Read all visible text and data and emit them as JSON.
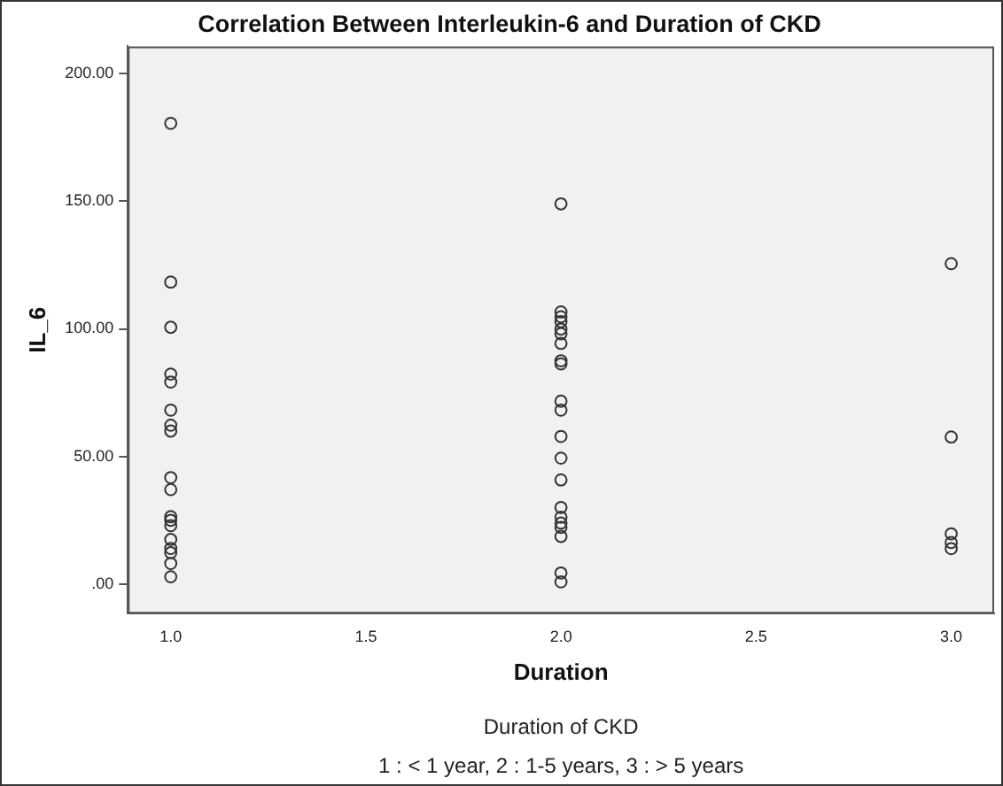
{
  "chart_data": {
    "type": "scatter",
    "title": "Correlation Between Interleukin-6 and Duration of CKD",
    "xlabel": "Duration",
    "ylabel": "IL_6",
    "annotations": [
      "Duration of CKD",
      "1 : < 1 year, 2 : 1-5 years, 3 : > 5 years"
    ],
    "x": [
      1,
      1,
      1,
      1,
      1,
      1,
      1,
      1,
      1,
      1,
      1,
      1,
      1,
      1,
      1,
      1,
      1,
      1,
      2,
      2,
      2,
      2,
      2,
      2,
      2,
      2,
      2,
      2,
      2,
      2,
      2,
      2,
      2,
      2,
      2,
      2,
      2,
      2,
      2,
      3,
      3,
      3,
      3,
      3
    ],
    "values": [
      180.4,
      118.3,
      100.6,
      82.3,
      79.2,
      68.2,
      62.3,
      60,
      41.8,
      37.1,
      26.5,
      25.1,
      23,
      17.6,
      14.1,
      12.4,
      8.2,
      3,
      148.9,
      106.6,
      104.7,
      102.8,
      99.9,
      98.1,
      94.3,
      87.5,
      86.3,
      71.7,
      68.2,
      57.9,
      49.4,
      40.9,
      30.1,
      26.3,
      24,
      22.3,
      18.8,
      4.5,
      1,
      125.5,
      57.7,
      19.8,
      16.4,
      14
    ],
    "color": "#333333",
    "marker": "circle",
    "grid": false,
    "legend": false,
    "xlim": [
      0.89,
      3.11
    ],
    "xticks": [
      {
        "value": 1,
        "label": "1.0"
      },
      1.5,
      {
        "value": 2,
        "label": "2.0"
      },
      2.5,
      {
        "value": 3,
        "label": "3.0"
      }
    ],
    "ylim": [
      -11.4,
      210.5
    ],
    "yticks": [
      {
        "value": 0,
        "label": ".00"
      },
      {
        "value": 50,
        "label": "50.00"
      },
      {
        "value": 100,
        "label": "100.00"
      },
      {
        "value": 150,
        "label": "150.00"
      },
      {
        "value": 200,
        "label": "200.00"
      }
    ]
  }
}
